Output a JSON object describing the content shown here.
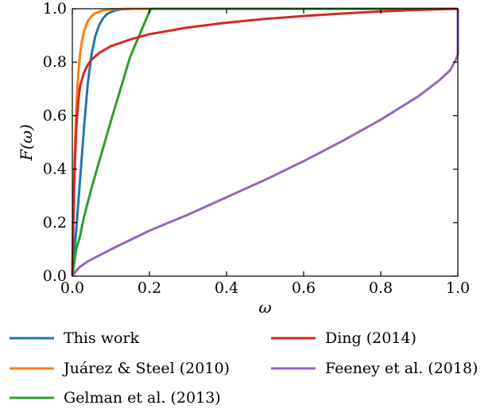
{
  "chart_data": {
    "type": "line",
    "xlabel": "ω",
    "ylabel": "F(ω)",
    "xlim": [
      0.0,
      1.0
    ],
    "ylim": [
      0.0,
      1.0
    ],
    "xticks": [
      "0.0",
      "0.2",
      "0.4",
      "0.6",
      "0.8",
      "1.0"
    ],
    "yticks": [
      "0.0",
      "0.2",
      "0.4",
      "0.6",
      "0.8",
      "1.0"
    ],
    "grid": false,
    "legend_placement": "below",
    "series": [
      {
        "name": "This work",
        "color": "#1f77b4",
        "x": [
          0.0,
          0.01,
          0.02,
          0.03,
          0.04,
          0.05,
          0.06,
          0.07,
          0.08,
          0.09,
          0.1,
          0.11,
          0.12,
          0.13,
          0.14,
          0.16,
          0.2,
          1.0
        ],
        "y": [
          0.0,
          0.17,
          0.36,
          0.55,
          0.72,
          0.83,
          0.9,
          0.94,
          0.965,
          0.98,
          0.988,
          0.993,
          0.996,
          0.998,
          0.999,
          1.0,
          1.0,
          1.0
        ]
      },
      {
        "name": "Juárez & Steel (2010)",
        "color": "#ff7f0e",
        "x": [
          0.0,
          0.002,
          0.005,
          0.01,
          0.015,
          0.02,
          0.025,
          0.03,
          0.04,
          0.05,
          0.06,
          0.08,
          0.1,
          0.12,
          0.15,
          1.0
        ],
        "y": [
          0.0,
          0.2,
          0.4,
          0.62,
          0.75,
          0.83,
          0.88,
          0.915,
          0.953,
          0.973,
          0.984,
          0.994,
          0.998,
          0.999,
          1.0,
          1.0
        ]
      },
      {
        "name": "Gelman et al. (2013)",
        "color": "#2ca02c",
        "x": [
          0.0,
          0.01,
          0.02,
          0.03,
          0.05,
          0.1,
          0.15,
          0.2,
          0.205,
          1.0
        ],
        "y": [
          0.0,
          0.1,
          0.15,
          0.22,
          0.33,
          0.58,
          0.82,
          0.99,
          1.0,
          1.0
        ]
      },
      {
        "name": "Ding (2014)",
        "color": "#d62728",
        "x": [
          0.0,
          0.002,
          0.005,
          0.01,
          0.015,
          0.02,
          0.03,
          0.04,
          0.05,
          0.07,
          0.1,
          0.15,
          0.2,
          0.3,
          0.4,
          0.5,
          0.6,
          0.7,
          0.8,
          0.9,
          1.0
        ],
        "y": [
          0.0,
          0.15,
          0.35,
          0.55,
          0.65,
          0.71,
          0.76,
          0.79,
          0.81,
          0.835,
          0.86,
          0.885,
          0.905,
          0.93,
          0.948,
          0.962,
          0.973,
          0.982,
          0.99,
          0.996,
          1.0
        ]
      },
      {
        "name": "Feeney et al. (2018)",
        "color": "#9467bd",
        "x": [
          0.0,
          0.005,
          0.01,
          0.02,
          0.04,
          0.06,
          0.1,
          0.15,
          0.2,
          0.3,
          0.4,
          0.5,
          0.6,
          0.7,
          0.8,
          0.9,
          0.95,
          0.98,
          0.995,
          1.0,
          1.0
        ],
        "y": [
          0.0,
          0.01,
          0.02,
          0.035,
          0.055,
          0.07,
          0.1,
          0.135,
          0.17,
          0.23,
          0.295,
          0.36,
          0.43,
          0.505,
          0.585,
          0.675,
          0.73,
          0.77,
          0.81,
          0.83,
          1.0
        ]
      }
    ]
  }
}
